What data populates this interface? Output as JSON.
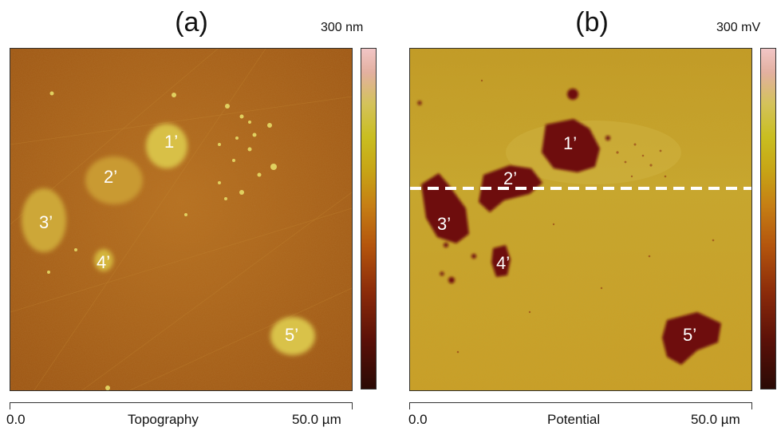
{
  "panel_a": {
    "label": "(a)",
    "scale_max": "300 nm",
    "axis_start": "0.0",
    "axis_title": "Topography",
    "axis_end": "50.0 µm",
    "markers": [
      "1’",
      "2’",
      "3’",
      "4’",
      "5’"
    ]
  },
  "panel_b": {
    "label": "(b)",
    "scale_max": "300 mV",
    "axis_start": "0.0",
    "axis_title": "Potential",
    "axis_end": "50.0 µm",
    "markers": [
      "1’",
      "2’",
      "3’",
      "4’",
      "5’"
    ]
  },
  "colors": {
    "topo_background": "#b0651a",
    "topo_feature": "#d4b93a",
    "potential_background": "#c9a52a",
    "potential_feature": "#6e0f0a",
    "dashed_line": "#ffffff"
  }
}
